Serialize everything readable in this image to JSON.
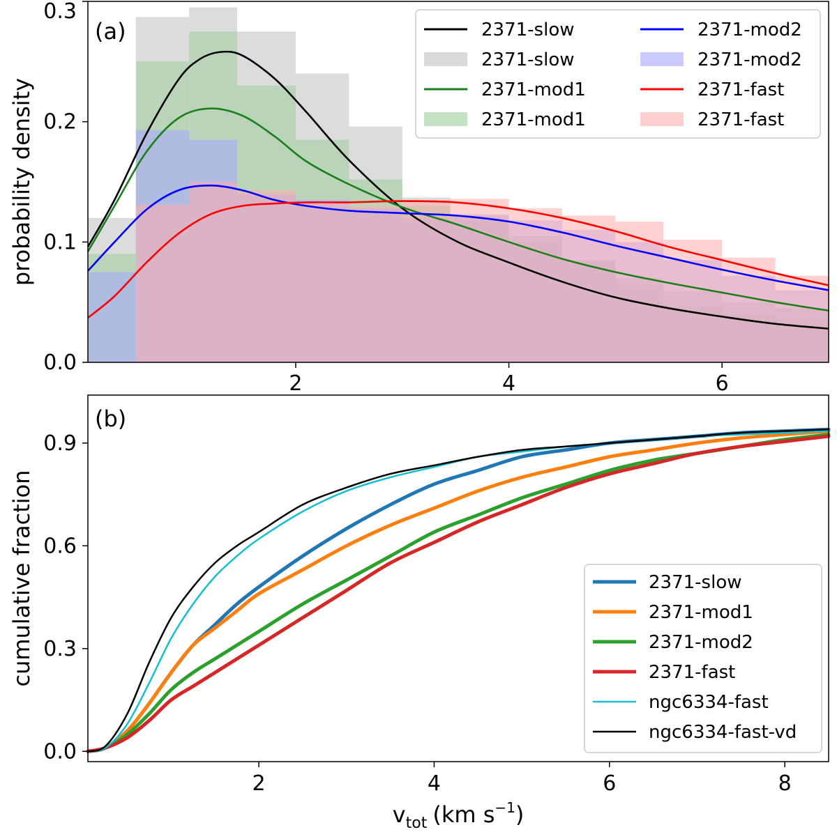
{
  "chart_data": [
    {
      "type": "histogram",
      "panel_label": "(a)",
      "ylabel": "probability density",
      "xlim": [
        0.05,
        7.0
      ],
      "ylim": [
        0.0,
        0.3
      ],
      "xticks": [
        2,
        4,
        6
      ],
      "yticks": [
        0.0,
        0.1,
        0.2,
        0.3
      ],
      "xtick_labels": [
        "2",
        "4",
        "6"
      ],
      "ytick_labels": [
        "0.0",
        "0.1",
        "0.2",
        "0.3"
      ],
      "legend_position": "top-right",
      "legend": [
        {
          "label": "2371-slow",
          "kind": "line"
        },
        {
          "label": "2371-mod2",
          "kind": "line"
        },
        {
          "label": "2371-slow",
          "kind": "patch"
        },
        {
          "label": "2371-mod2",
          "kind": "patch"
        },
        {
          "label": "2371-mod1",
          "kind": "line"
        },
        {
          "label": "2371-fast",
          "kind": "line"
        },
        {
          "label": "2371-mod1",
          "kind": "patch"
        },
        {
          "label": "2371-fast",
          "kind": "patch"
        }
      ],
      "colors": {
        "slow_line": "#000000",
        "slow_fill": "#bfbfbf",
        "mod1_line": "#1a7f1a",
        "mod1_fill": "#9fce9f",
        "mod2_line": "#0000ff",
        "mod2_fill": "#a6a6ff",
        "fast_line": "#ff0000",
        "fast_fill": "#ffadad",
        "overlap_fill": "#a68c9f"
      },
      "histograms": [
        {
          "series": "2371-slow",
          "edges": [
            0.05,
            0.5,
            1.0,
            1.45,
            2.0,
            2.5,
            3.0,
            3.45,
            4.0,
            4.5,
            5.0,
            5.45,
            6.0,
            6.5,
            7.0
          ],
          "values": [
            0.12,
            0.287,
            0.295,
            0.275,
            0.24,
            0.196,
            0.137,
            0.118,
            0.1,
            0.084,
            0.064,
            0.047,
            0.04,
            0.036
          ]
        },
        {
          "series": "2371-mod1",
          "edges": [
            0.05,
            0.5,
            1.0,
            1.45,
            2.0,
            2.5,
            3.0,
            3.45,
            4.0,
            4.5,
            5.0,
            5.45,
            6.0,
            6.5,
            7.0
          ],
          "values": [
            0.09,
            0.25,
            0.275,
            0.23,
            0.185,
            0.152,
            0.13,
            0.122,
            0.105,
            0.085,
            0.07,
            0.059,
            0.05,
            0.045
          ]
        },
        {
          "series": "2371-mod2",
          "edges": [
            0.05,
            0.5,
            1.0,
            1.45,
            2.0,
            2.5,
            3.0,
            3.45,
            4.0,
            4.5,
            5.0,
            5.45,
            6.0,
            6.5,
            7.0
          ],
          "values": [
            0.075,
            0.193,
            0.185,
            0.14,
            0.135,
            0.128,
            0.12,
            0.123,
            0.118,
            0.11,
            0.1,
            0.085,
            0.072,
            0.06
          ]
        },
        {
          "series": "2371-fast",
          "edges": [
            0.05,
            0.5,
            1.0,
            1.45,
            2.0,
            2.5,
            3.0,
            3.45,
            4.0,
            4.5,
            5.0,
            5.45,
            6.0,
            6.5,
            7.0
          ],
          "values": [
            0.0,
            0.131,
            0.15,
            0.143,
            0.133,
            0.13,
            0.135,
            0.136,
            0.128,
            0.122,
            0.117,
            0.102,
            0.087,
            0.072
          ]
        }
      ],
      "series": [
        {
          "name": "2371-slow",
          "x": [
            0.05,
            0.3,
            0.6,
            0.9,
            1.1,
            1.3,
            1.5,
            1.8,
            2.1,
            2.5,
            3.0,
            3.5,
            4.0,
            4.5,
            5.0,
            5.5,
            6.0,
            6.5,
            7.0
          ],
          "y": [
            0.096,
            0.135,
            0.19,
            0.235,
            0.252,
            0.258,
            0.255,
            0.236,
            0.208,
            0.168,
            0.128,
            0.101,
            0.083,
            0.067,
            0.054,
            0.045,
            0.038,
            0.032,
            0.028
          ]
        },
        {
          "name": "2371-mod1",
          "x": [
            0.05,
            0.3,
            0.6,
            0.9,
            1.2,
            1.5,
            1.8,
            2.1,
            2.5,
            3.0,
            3.5,
            4.0,
            4.5,
            5.0,
            5.5,
            6.0,
            6.5,
            7.0
          ],
          "y": [
            0.092,
            0.13,
            0.175,
            0.203,
            0.211,
            0.205,
            0.188,
            0.167,
            0.148,
            0.129,
            0.115,
            0.1,
            0.086,
            0.075,
            0.066,
            0.058,
            0.05,
            0.043
          ]
        },
        {
          "name": "2371-mod2",
          "x": [
            0.05,
            0.3,
            0.6,
            0.9,
            1.2,
            1.5,
            1.8,
            2.1,
            2.5,
            3.0,
            3.5,
            4.0,
            4.5,
            5.0,
            5.5,
            6.0,
            6.5,
            7.0
          ],
          "y": [
            0.076,
            0.1,
            0.127,
            0.143,
            0.147,
            0.143,
            0.135,
            0.13,
            0.126,
            0.124,
            0.122,
            0.117,
            0.108,
            0.097,
            0.087,
            0.077,
            0.068,
            0.06
          ]
        },
        {
          "name": "2371-fast",
          "x": [
            0.05,
            0.3,
            0.6,
            0.9,
            1.2,
            1.5,
            1.8,
            2.1,
            2.5,
            3.0,
            3.5,
            4.0,
            4.5,
            5.0,
            5.5,
            6.0,
            6.5,
            7.0
          ],
          "y": [
            0.037,
            0.055,
            0.083,
            0.107,
            0.123,
            0.13,
            0.132,
            0.133,
            0.133,
            0.134,
            0.133,
            0.128,
            0.12,
            0.109,
            0.096,
            0.085,
            0.074,
            0.064
          ]
        }
      ]
    },
    {
      "type": "line",
      "panel_label": "(b)",
      "xlabel": "v",
      "xlabel_sub": "tot",
      "xlabel_units": "(km s",
      "xlabel_sup": "−1",
      "xlabel_close": ")",
      "ylabel": "cumulative fraction",
      "xlim": [
        0.05,
        8.5
      ],
      "ylim": [
        -0.03,
        1.04
      ],
      "xticks": [
        2,
        4,
        6,
        8
      ],
      "yticks": [
        0.0,
        0.3,
        0.6,
        0.9
      ],
      "xtick_labels": [
        "2",
        "4",
        "6",
        "8"
      ],
      "ytick_labels": [
        "0.0",
        "0.3",
        "0.6",
        "0.9"
      ],
      "legend_position": "lower-right",
      "series": [
        {
          "name": "2371-slow",
          "color": "#1f77b4",
          "width": 5,
          "x": [
            0.05,
            0.25,
            0.5,
            0.75,
            1.0,
            1.25,
            1.5,
            1.75,
            2.0,
            2.5,
            3.0,
            3.5,
            4.0,
            4.5,
            5.0,
            5.5,
            6.0,
            6.5,
            7.0,
            7.5,
            8.0,
            8.5
          ],
          "y": [
            0.0,
            0.01,
            0.06,
            0.14,
            0.23,
            0.31,
            0.37,
            0.43,
            0.48,
            0.57,
            0.65,
            0.72,
            0.78,
            0.82,
            0.86,
            0.88,
            0.9,
            0.91,
            0.92,
            0.93,
            0.935,
            0.94
          ]
        },
        {
          "name": "2371-mod1",
          "color": "#ff7f0e",
          "width": 5,
          "x": [
            0.05,
            0.25,
            0.5,
            0.75,
            1.0,
            1.25,
            1.5,
            1.75,
            2.0,
            2.5,
            3.0,
            3.5,
            4.0,
            4.5,
            5.0,
            5.5,
            6.0,
            6.5,
            7.0,
            7.5,
            8.0,
            8.5
          ],
          "y": [
            0.0,
            0.01,
            0.06,
            0.14,
            0.23,
            0.31,
            0.36,
            0.41,
            0.46,
            0.53,
            0.6,
            0.66,
            0.71,
            0.76,
            0.8,
            0.83,
            0.86,
            0.88,
            0.9,
            0.915,
            0.925,
            0.935
          ]
        },
        {
          "name": "2371-mod2",
          "color": "#2ca02c",
          "width": 5,
          "x": [
            0.05,
            0.25,
            0.5,
            0.75,
            1.0,
            1.25,
            1.5,
            1.75,
            2.0,
            2.5,
            3.0,
            3.5,
            4.0,
            4.5,
            5.0,
            5.5,
            6.0,
            6.5,
            7.0,
            7.5,
            8.0,
            8.5
          ],
          "y": [
            0.0,
            0.01,
            0.05,
            0.11,
            0.18,
            0.23,
            0.27,
            0.31,
            0.35,
            0.43,
            0.5,
            0.57,
            0.64,
            0.69,
            0.74,
            0.78,
            0.82,
            0.85,
            0.87,
            0.89,
            0.91,
            0.925
          ]
        },
        {
          "name": "2371-fast",
          "color": "#d62728",
          "width": 5,
          "x": [
            0.05,
            0.25,
            0.5,
            0.75,
            1.0,
            1.25,
            1.5,
            1.75,
            2.0,
            2.5,
            3.0,
            3.5,
            4.0,
            4.5,
            5.0,
            5.5,
            6.0,
            6.5,
            7.0,
            7.5,
            8.0,
            8.5
          ],
          "y": [
            0.0,
            0.01,
            0.04,
            0.09,
            0.15,
            0.19,
            0.23,
            0.27,
            0.31,
            0.39,
            0.47,
            0.55,
            0.61,
            0.67,
            0.72,
            0.77,
            0.81,
            0.84,
            0.87,
            0.89,
            0.905,
            0.92
          ]
        },
        {
          "name": "ngc6334-fast",
          "color": "#17becf",
          "width": 2.5,
          "x": [
            0.05,
            0.25,
            0.5,
            0.75,
            1.0,
            1.25,
            1.5,
            1.75,
            2.0,
            2.5,
            3.0,
            3.5,
            4.0,
            4.5,
            5.0,
            5.5,
            6.0,
            6.5,
            7.0,
            7.5,
            8.0,
            8.5
          ],
          "y": [
            0.0,
            0.01,
            0.08,
            0.2,
            0.33,
            0.43,
            0.51,
            0.57,
            0.62,
            0.7,
            0.76,
            0.8,
            0.83,
            0.86,
            0.875,
            0.89,
            0.9,
            0.91,
            0.92,
            0.925,
            0.93,
            0.935
          ]
        },
        {
          "name": "ngc6334-fast-vd",
          "color": "#000000",
          "width": 2.5,
          "x": [
            0.05,
            0.25,
            0.5,
            0.75,
            1.0,
            1.25,
            1.5,
            1.75,
            2.0,
            2.5,
            3.0,
            3.5,
            4.0,
            4.5,
            5.0,
            5.5,
            6.0,
            6.5,
            7.0,
            7.5,
            8.0,
            8.5
          ],
          "y": [
            0.0,
            0.015,
            0.11,
            0.26,
            0.39,
            0.48,
            0.55,
            0.6,
            0.64,
            0.72,
            0.77,
            0.81,
            0.835,
            0.86,
            0.88,
            0.89,
            0.9,
            0.91,
            0.92,
            0.93,
            0.935,
            0.94
          ]
        }
      ]
    }
  ]
}
